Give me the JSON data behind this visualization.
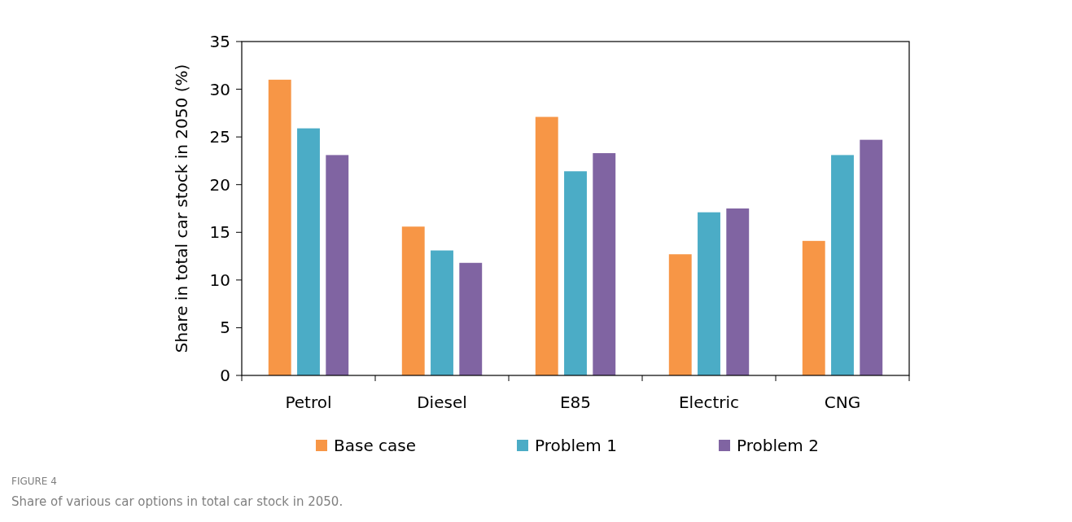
{
  "chart_data": {
    "type": "bar",
    "ylabel": "Share in total car stock in 2050 (%)",
    "categories": [
      "Petrol",
      "Diesel",
      "E85",
      "Electric",
      "CNG"
    ],
    "series": [
      {
        "name": "Base case",
        "color": "#f79646",
        "values": [
          31.0,
          15.6,
          27.1,
          12.7,
          14.1
        ]
      },
      {
        "name": "Problem 1",
        "color": "#4bacc6",
        "values": [
          25.9,
          13.1,
          21.4,
          17.1,
          23.1
        ]
      },
      {
        "name": "Problem 2",
        "color": "#8064a2",
        "values": [
          23.1,
          11.8,
          23.3,
          17.5,
          24.7
        ]
      }
    ],
    "ylim": [
      0,
      35
    ],
    "yticks": [
      0,
      5,
      10,
      15,
      20,
      25,
      30,
      35
    ],
    "grid": false,
    "legend": "bottom",
    "annotations": [
      "FIGURE 4",
      "Share of various car options in total car stock in 2050."
    ]
  }
}
